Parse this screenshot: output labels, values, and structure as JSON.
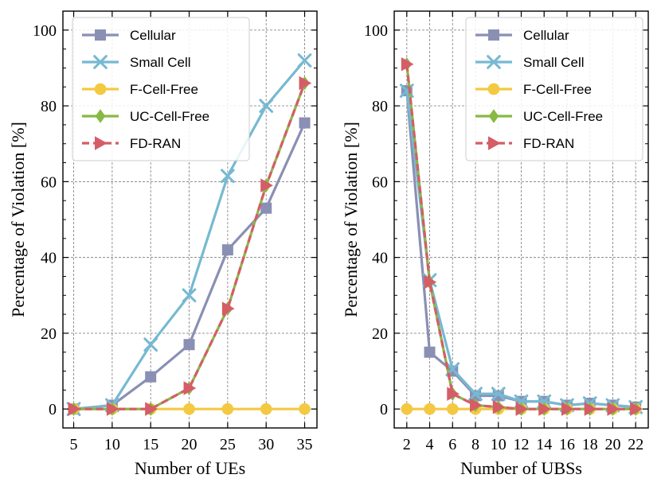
{
  "chart_data": [
    {
      "type": "line",
      "title": "",
      "xlabel": "Number of UEs",
      "ylabel": "Percentage of Violation [%]",
      "x": [
        5,
        10,
        15,
        20,
        25,
        30,
        35
      ],
      "xticks": [
        "5",
        "10",
        "15",
        "20",
        "25",
        "30",
        "35"
      ],
      "yticks": [
        "0",
        "20",
        "40",
        "60",
        "80",
        "100"
      ],
      "xlim": [
        3.6,
        36.6
      ],
      "ylim": [
        -5,
        105
      ],
      "grid": true,
      "legend_position": "top-left",
      "series": [
        {
          "name": "Cellular",
          "color": "#8a8fb4",
          "marker": "square",
          "dash": "solid",
          "values": [
            0,
            1,
            8.5,
            17,
            42,
            53,
            75.5
          ]
        },
        {
          "name": "Small Cell",
          "color": "#76b9d2",
          "marker": "x",
          "dash": "solid",
          "values": [
            0,
            1,
            17,
            30,
            61.5,
            80,
            92
          ]
        },
        {
          "name": "F-Cell-Free",
          "color": "#f4c942",
          "marker": "circle",
          "dash": "solid",
          "values": [
            0,
            0,
            0,
            0,
            0,
            0,
            0
          ]
        },
        {
          "name": "UC-Cell-Free",
          "color": "#88b945",
          "marker": "diamond",
          "dash": "solid",
          "values": [
            0,
            0,
            0,
            5.5,
            26.5,
            59,
            86
          ]
        },
        {
          "name": "FD-RAN",
          "color": "#d55d67",
          "marker": "triangle-right",
          "dash": "dashed",
          "values": [
            0,
            0,
            0,
            5.5,
            26.5,
            59,
            86
          ]
        }
      ]
    },
    {
      "type": "line",
      "title": "",
      "xlabel": "Number of UBSs",
      "ylabel": "Percentage of Violation [%]",
      "x": [
        2,
        4,
        6,
        8,
        10,
        12,
        14,
        16,
        18,
        20,
        22
      ],
      "xticks": [
        "2",
        "4",
        "6",
        "8",
        "10",
        "12",
        "14",
        "16",
        "18",
        "20",
        "22"
      ],
      "yticks": [
        "0",
        "20",
        "40",
        "60",
        "80",
        "100"
      ],
      "xlim": [
        0.9,
        23.1
      ],
      "ylim": [
        -5,
        105
      ],
      "grid": true,
      "legend_position": "top-right",
      "series": [
        {
          "name": "Cellular",
          "color": "#8a8fb4",
          "marker": "square",
          "dash": "solid",
          "values": [
            84,
            15,
            10,
            3.5,
            3.5,
            2,
            2,
            1,
            1.5,
            1,
            0.5
          ]
        },
        {
          "name": "Small Cell",
          "color": "#76b9d2",
          "marker": "x",
          "dash": "solid",
          "values": [
            84,
            34,
            10.5,
            4,
            4,
            2,
            2,
            1,
            1.5,
            1,
            0.5
          ]
        },
        {
          "name": "F-Cell-Free",
          "color": "#f4c942",
          "marker": "circle",
          "dash": "solid",
          "values": [
            0,
            0,
            0,
            0,
            0,
            0,
            0,
            0,
            0,
            0,
            0
          ]
        },
        {
          "name": "UC-Cell-Free",
          "color": "#88b945",
          "marker": "diamond",
          "dash": "solid",
          "values": [
            91,
            33.5,
            4,
            1,
            0.5,
            0,
            0,
            0,
            0,
            0,
            0
          ]
        },
        {
          "name": "FD-RAN",
          "color": "#d55d67",
          "marker": "triangle-right",
          "dash": "dashed",
          "values": [
            91,
            33.5,
            4,
            1,
            0.5,
            0,
            0,
            0,
            0,
            0,
            0
          ]
        }
      ]
    }
  ]
}
